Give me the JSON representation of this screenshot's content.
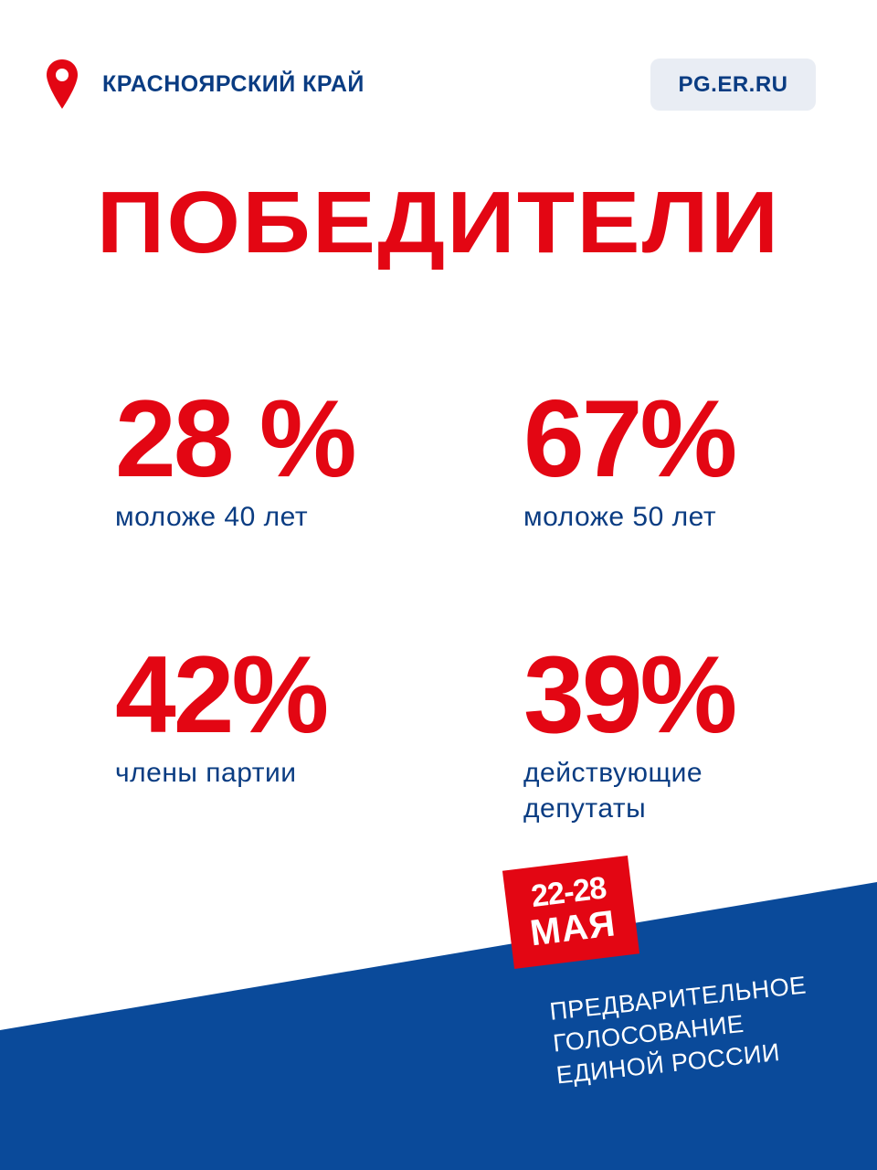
{
  "header": {
    "region": "КРАСНОЯРСКИЙ КРАЙ",
    "region_icon": "location-pin-icon",
    "site": "PG.ER.RU"
  },
  "headline": "ПОБЕДИТЕЛИ",
  "stats": [
    {
      "value": "28 %",
      "label": "моложе 40 лет"
    },
    {
      "value": "67%",
      "label": "моложе 50 лет"
    },
    {
      "value": "42%",
      "label": "члены партии"
    },
    {
      "value": "39%",
      "label_lines": [
        "действующие",
        "депутаты"
      ]
    }
  ],
  "dates": {
    "range": "22-28",
    "month": "МАЯ"
  },
  "campaign": {
    "lines": [
      "ПРЕДВАРИТЕЛЬНОЕ",
      "ГОЛОСОВАНИЕ",
      "ЕДИНОЙ РОССИИ"
    ]
  },
  "colors": {
    "red": "#e30613",
    "blue": "#0a4a9a",
    "text_blue": "#0a3c82",
    "badge_bg": "#e9edf4",
    "background": "#ffffff"
  }
}
